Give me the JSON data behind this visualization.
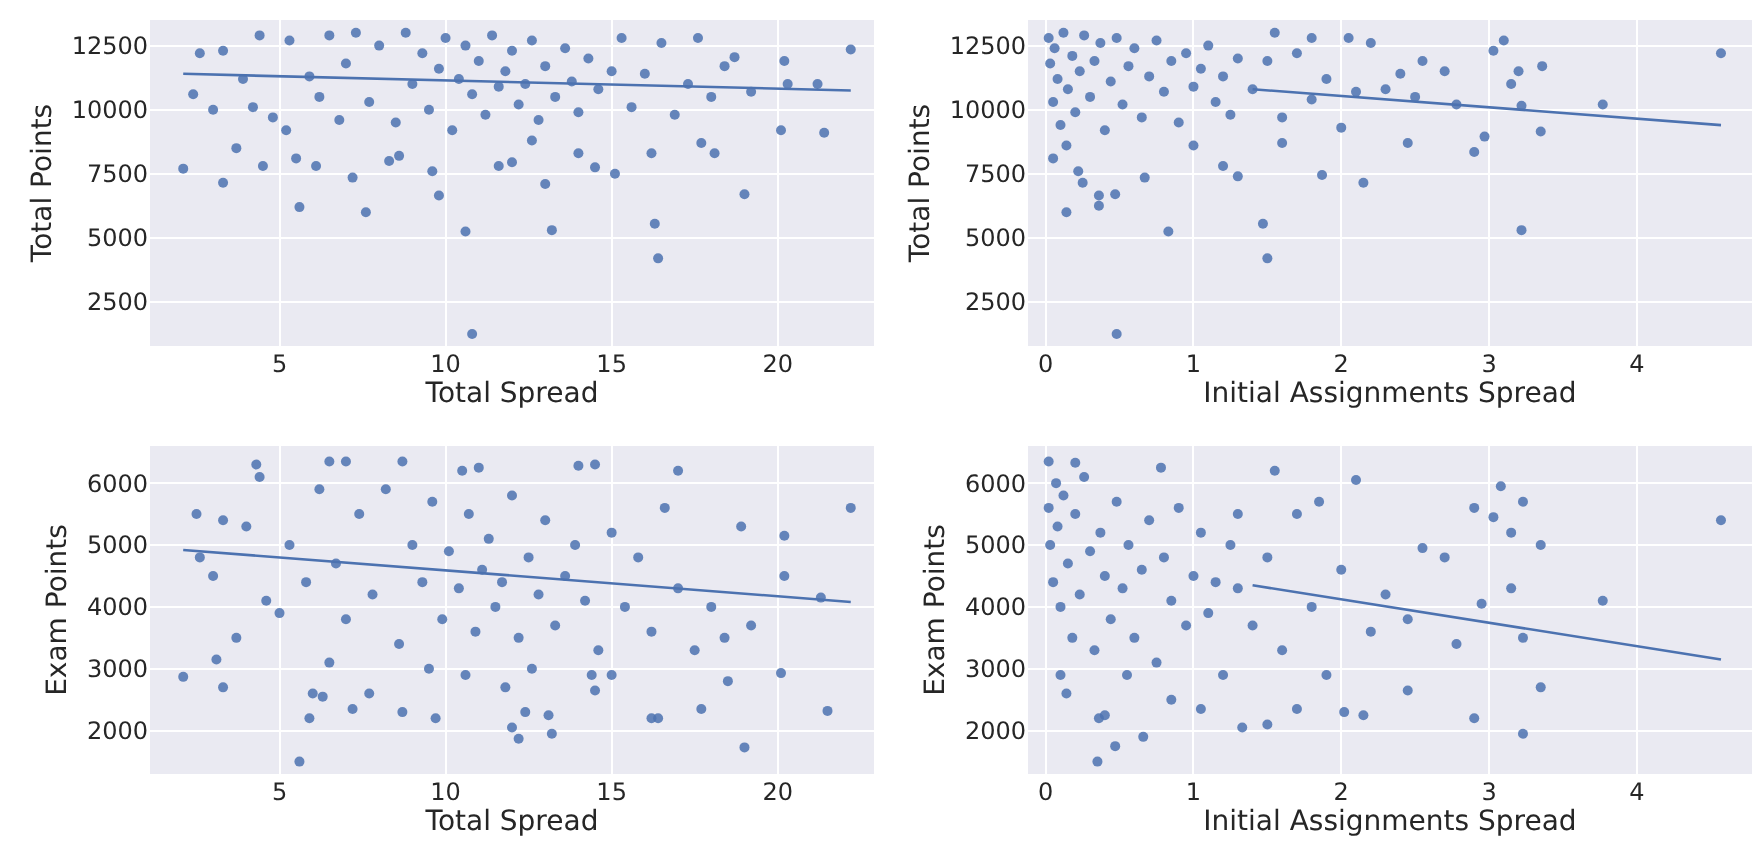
{
  "chart_data": [
    {
      "type": "scatter",
      "xlabel": "Total Spread",
      "ylabel": "Total Points",
      "xlim": [
        1.1,
        22.9
      ],
      "xticks": [
        5,
        10,
        15,
        20
      ],
      "ylim": [
        780,
        13500
      ],
      "yticks": [
        2500,
        5000,
        7500,
        10000,
        12500
      ],
      "grid": true,
      "marker": "circle",
      "series": [
        {
          "color": "#4c72b0",
          "x": [
            2.1,
            3.3,
            3.7,
            4.5,
            5.6,
            7.6,
            7.2,
            9.8,
            10.6,
            10.8,
            13.2,
            13.0,
            16.3,
            16.4,
            19.0,
            20.1,
            21.4,
            22.2,
            20.2,
            20.3,
            21.2,
            18.7,
            15.1,
            14.5,
            17.7,
            18.1,
            16.2,
            12.0,
            11.6,
            9.6,
            8.3,
            5.5,
            6.1,
            2.4,
            2.6,
            3.0,
            3.3,
            3.9,
            4.2,
            4.4,
            4.8,
            5.2,
            5.3,
            5.9,
            6.2,
            6.5,
            6.8,
            7.0,
            7.3,
            7.7,
            8.0,
            8.5,
            8.8,
            9.0,
            9.3,
            9.5,
            9.8,
            10.0,
            10.2,
            10.4,
            10.6,
            10.8,
            11.0,
            11.2,
            11.4,
            11.6,
            11.8,
            12.0,
            12.2,
            12.4,
            12.6,
            12.8,
            13.0,
            13.3,
            13.6,
            13.8,
            14.0,
            14.3,
            14.6,
            15.0,
            15.3,
            15.6,
            16.0,
            16.5,
            16.9,
            17.3,
            17.6,
            18.0,
            18.4,
            19.2,
            8.6,
            12.6,
            14.0
          ],
          "values": [
            7700,
            7150,
            8500,
            7800,
            6200,
            6000,
            7350,
            6650,
            5250,
            1250,
            5300,
            7100,
            5550,
            4200,
            6700,
            9200,
            9100,
            12350,
            11900,
            11000,
            11000,
            12050,
            7500,
            7750,
            8700,
            8300,
            8300,
            7950,
            7800,
            7600,
            8000,
            8100,
            7800,
            10600,
            12200,
            10000,
            12300,
            11200,
            10100,
            12900,
            9700,
            9200,
            12700,
            11300,
            10500,
            12900,
            9600,
            11800,
            13000,
            10300,
            12500,
            9500,
            13000,
            11000,
            12200,
            10000,
            11600,
            12800,
            9200,
            11200,
            12500,
            10600,
            11900,
            9800,
            12900,
            10900,
            11500,
            12300,
            10200,
            11000,
            12700,
            9600,
            11700,
            10500,
            12400,
            11100,
            9900,
            12000,
            10800,
            11500,
            12800,
            10100,
            11400,
            12600,
            9800,
            11000,
            12800,
            10500,
            11700,
            10700,
            8200,
            8800,
            8300
          ]
        },
        {
          "type": "line",
          "marker": "none",
          "color": "#4c72b0",
          "x": [
            2.1,
            22.2
          ],
          "values": [
            11400,
            10750
          ]
        }
      ]
    },
    {
      "type": "scatter",
      "xlabel": "Initial Assignments Spread",
      "ylabel": "Total Points",
      "xlim": [
        -0.12,
        4.78
      ],
      "xticks": [
        0,
        1,
        2,
        3,
        4
      ],
      "ylim": [
        780,
        13500
      ],
      "yticks": [
        2500,
        5000,
        7500,
        10000,
        12500
      ],
      "grid": true,
      "marker": "circle",
      "series": [
        {
          "color": "#4c72b0",
          "x": [
            0.48,
            0.83,
            1.47,
            1.5,
            3.22,
            0.14,
            0.36,
            0.47,
            0.36,
            0.22,
            0.25,
            0.67,
            0.05,
            0.14,
            1.3,
            1.87,
            2.15,
            2.9,
            2.97,
            3.35,
            3.77,
            4.57,
            3.03,
            3.1,
            3.2,
            3.15,
            3.36,
            3.22,
            2.78,
            2.45,
            2.2,
            2.55,
            1.55,
            1.8,
            2.05,
            1.0,
            1.2,
            1.6,
            0.02,
            0.03,
            0.05,
            0.06,
            0.08,
            0.1,
            0.12,
            0.15,
            0.18,
            0.2,
            0.23,
            0.26,
            0.3,
            0.33,
            0.37,
            0.4,
            0.44,
            0.48,
            0.52,
            0.56,
            0.6,
            0.65,
            0.7,
            0.75,
            0.8,
            0.85,
            0.9,
            0.95,
            1.0,
            1.05,
            1.1,
            1.15,
            1.2,
            1.25,
            1.3,
            1.4,
            1.5,
            1.6,
            1.7,
            1.8,
            1.9,
            2.0,
            2.1,
            2.3,
            2.4,
            2.5,
            2.7
          ],
          "values": [
            1250,
            5250,
            5550,
            4200,
            5300,
            6000,
            6650,
            6700,
            6250,
            7600,
            7150,
            7350,
            8100,
            8600,
            7400,
            7450,
            7150,
            8350,
            8950,
            9150,
            10200,
            12200,
            12300,
            12700,
            11500,
            11000,
            11700,
            10150,
            10200,
            8700,
            12600,
            11900,
            13000,
            12800,
            12800,
            8600,
            7800,
            8700,
            12800,
            11800,
            10300,
            12400,
            11200,
            9400,
            13000,
            10800,
            12100,
            9900,
            11500,
            12900,
            10500,
            11900,
            12600,
            9200,
            11100,
            12800,
            10200,
            11700,
            12400,
            9700,
            11300,
            12700,
            10700,
            11900,
            9500,
            12200,
            10900,
            11600,
            12500,
            10300,
            11300,
            9800,
            12000,
            10800,
            11900,
            9700,
            12200,
            10400,
            11200,
            9300,
            10700,
            10800,
            11400,
            10500,
            11500
          ]
        },
        {
          "type": "line",
          "marker": "none",
          "color": "#4c72b0",
          "x": [
            1.4,
            4.57
          ],
          "values": [
            10800,
            9400
          ]
        }
      ]
    },
    {
      "type": "scatter",
      "xlabel": "Total Spread",
      "ylabel": "Exam Points",
      "xlim": [
        1.1,
        22.9
      ],
      "xticks": [
        5,
        10,
        15,
        20
      ],
      "ylim": [
        1300,
        6600
      ],
      "yticks": [
        2000,
        3000,
        4000,
        5000,
        6000
      ],
      "grid": true,
      "marker": "circle",
      "series": [
        {
          "color": "#4c72b0",
          "x": [
            2.1,
            3.1,
            3.3,
            3.7,
            5.6,
            5.9,
            6.0,
            6.3,
            6.5,
            7.2,
            7.7,
            8.7,
            9.7,
            10.6,
            11.8,
            12.0,
            12.2,
            12.4,
            13.2,
            13.1,
            14.5,
            15.0,
            16.2,
            16.4,
            17.7,
            18.5,
            19.0,
            19.2,
            20.1,
            21.5,
            22.2,
            20.2,
            20.2,
            21.3,
            18.9,
            17.0,
            14.5,
            14.0,
            11.0,
            10.5,
            6.5,
            7.0,
            8.7,
            4.3,
            4.4,
            2.5,
            2.6,
            3.0,
            3.3,
            4.0,
            4.6,
            5.0,
            5.3,
            5.8,
            6.2,
            6.7,
            7.0,
            7.4,
            7.8,
            8.2,
            8.6,
            9.0,
            9.3,
            9.6,
            9.9,
            10.1,
            10.4,
            10.7,
            10.9,
            11.1,
            11.3,
            11.5,
            11.7,
            12.0,
            12.2,
            12.5,
            12.8,
            13.0,
            13.3,
            13.6,
            13.9,
            14.2,
            14.6,
            15.0,
            15.4,
            15.8,
            16.2,
            16.6,
            17.0,
            17.5,
            18.0,
            18.4,
            12.6,
            9.5,
            14.4
          ],
          "values": [
            2870,
            3150,
            2700,
            3500,
            1500,
            2200,
            2600,
            2550,
            3100,
            2350,
            2600,
            2300,
            2200,
            2900,
            2700,
            2050,
            1870,
            2300,
            1950,
            2250,
            2650,
            2900,
            2200,
            2200,
            2350,
            2800,
            1730,
            3700,
            2930,
            2320,
            5600,
            5150,
            4500,
            4150,
            5300,
            6200,
            6300,
            6280,
            6250,
            6200,
            6350,
            6350,
            6350,
            6300,
            6100,
            5500,
            4800,
            4500,
            5400,
            5300,
            4100,
            3900,
            5000,
            4400,
            5900,
            4700,
            3800,
            5500,
            4200,
            5900,
            3400,
            5000,
            4400,
            5700,
            3800,
            4900,
            4300,
            5500,
            3600,
            4600,
            5100,
            4000,
            4400,
            5800,
            3500,
            4800,
            4200,
            5400,
            3700,
            4500,
            5000,
            4100,
            3300,
            5200,
            4000,
            4800,
            3600,
            5600,
            4300,
            3300,
            4000,
            3500,
            3000,
            3000,
            2900
          ]
        },
        {
          "type": "line",
          "marker": "none",
          "color": "#4c72b0",
          "x": [
            2.1,
            22.2
          ],
          "values": [
            4920,
            4080
          ]
        }
      ]
    },
    {
      "type": "scatter",
      "xlabel": "Initial Assignments Spread",
      "ylabel": "Exam Points",
      "xlim": [
        -0.12,
        4.78
      ],
      "xticks": [
        0,
        1,
        2,
        3,
        4
      ],
      "ylim": [
        1300,
        6600
      ],
      "yticks": [
        2000,
        3000,
        4000,
        5000,
        6000
      ],
      "grid": true,
      "marker": "circle",
      "series": [
        {
          "color": "#4c72b0",
          "x": [
            0.35,
            0.47,
            0.36,
            0.4,
            0.66,
            0.14,
            0.1,
            0.55,
            0.85,
            1.05,
            1.33,
            1.5,
            1.7,
            2.02,
            2.15,
            2.45,
            2.9,
            3.23,
            3.35,
            3.23,
            4.57,
            3.77,
            3.35,
            3.23,
            3.15,
            3.03,
            3.08,
            2.9,
            2.95,
            3.15,
            2.78,
            2.7,
            2.55,
            2.1,
            1.55,
            0.02,
            0.2,
            0.78,
            0.02,
            0.03,
            0.05,
            0.07,
            0.08,
            0.1,
            0.12,
            0.15,
            0.18,
            0.2,
            0.23,
            0.26,
            0.3,
            0.33,
            0.37,
            0.4,
            0.44,
            0.48,
            0.52,
            0.56,
            0.6,
            0.65,
            0.7,
            0.75,
            0.8,
            0.85,
            0.9,
            0.95,
            1.0,
            1.05,
            1.1,
            1.15,
            1.2,
            1.25,
            1.3,
            1.4,
            1.5,
            1.6,
            1.7,
            1.8,
            1.9,
            2.0,
            2.2,
            2.3,
            2.45,
            1.85,
            1.3
          ],
          "values": [
            1500,
            1750,
            2200,
            2250,
            1900,
            2600,
            2900,
            2900,
            2500,
            2350,
            2050,
            2100,
            2350,
            2300,
            2250,
            2650,
            2200,
            1950,
            2700,
            3500,
            5400,
            4100,
            5000,
            5700,
            5200,
            5450,
            5950,
            5600,
            4050,
            4300,
            3400,
            4800,
            4950,
            6050,
            6200,
            6350,
            6330,
            6250,
            5600,
            5000,
            4400,
            6000,
            5300,
            4000,
            5800,
            4700,
            3500,
            5500,
            4200,
            6100,
            4900,
            3300,
            5200,
            4500,
            3800,
            5700,
            4300,
            5000,
            3500,
            4600,
            5400,
            3100,
            4800,
            4100,
            5600,
            3700,
            4500,
            5200,
            3900,
            4400,
            2900,
            5000,
            4300,
            3700,
            4800,
            3300,
            5500,
            4000,
            2900,
            4600,
            3600,
            4200,
            3800,
            5700,
            5500
          ]
        },
        {
          "type": "line",
          "marker": "none",
          "color": "#4c72b0",
          "x": [
            1.4,
            4.57
          ],
          "values": [
            4350,
            3150
          ]
        }
      ]
    }
  ]
}
